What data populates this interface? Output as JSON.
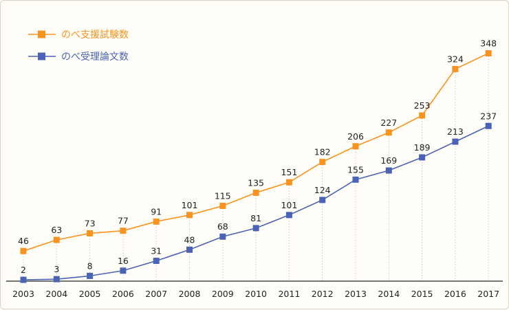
{
  "chart_data": {
    "type": "line",
    "categories": [
      "2003",
      "2004",
      "2005",
      "2006",
      "2007",
      "2008",
      "2009",
      "2010",
      "2011",
      "2012",
      "2013",
      "2014",
      "2015",
      "2016",
      "2017"
    ],
    "series": [
      {
        "name": "のべ支援試験数",
        "color": "#f7931e",
        "marker": "square",
        "values": [
          46,
          63,
          73,
          77,
          91,
          101,
          115,
          135,
          151,
          182,
          206,
          227,
          253,
          324,
          348
        ]
      },
      {
        "name": "のべ受理論文数",
        "color": "#4a63b5",
        "marker": "square",
        "values": [
          2,
          3,
          8,
          16,
          31,
          48,
          68,
          81,
          101,
          124,
          155,
          169,
          189,
          213,
          237
        ]
      }
    ],
    "title": "",
    "xlabel": "",
    "ylabel": "",
    "ylim": [
      0,
      355
    ],
    "grid": "vertical dotted drop-lines",
    "legend": "top-left",
    "data_labels": true
  }
}
